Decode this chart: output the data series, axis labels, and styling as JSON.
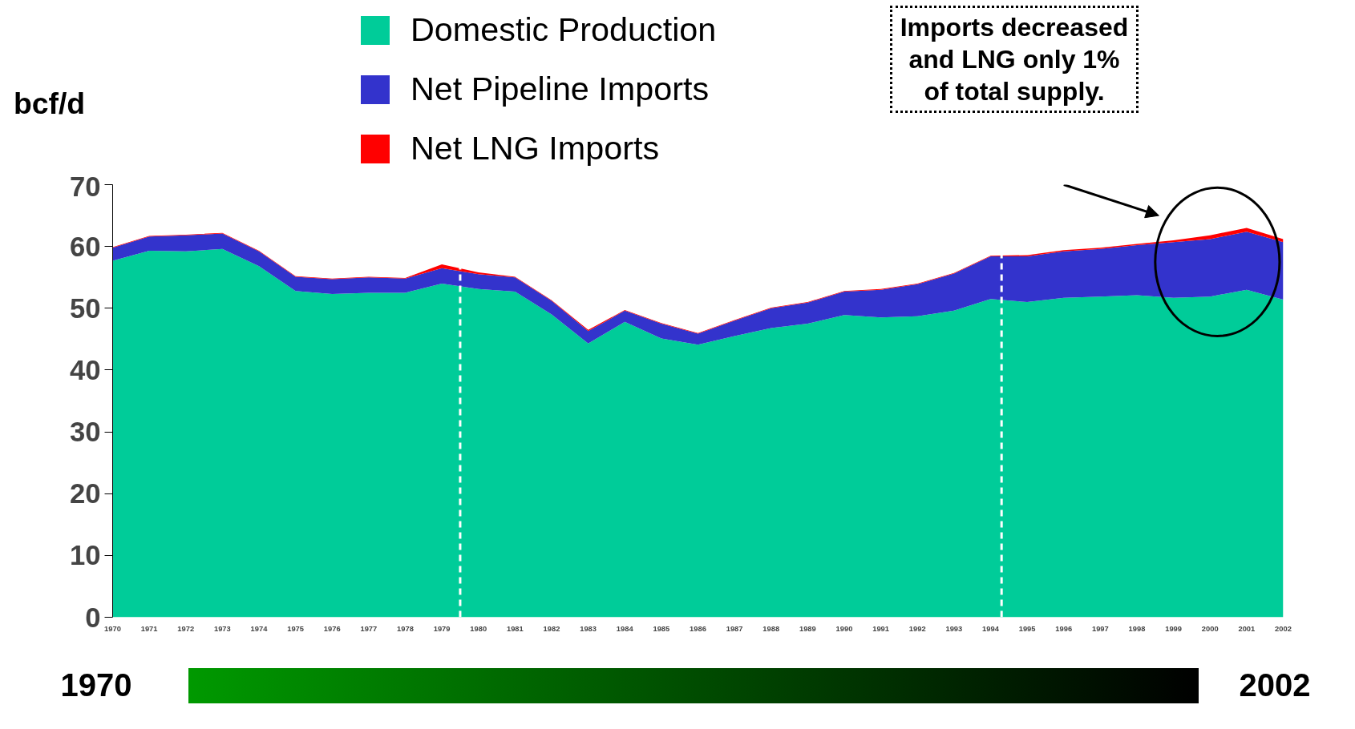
{
  "chart_data": {
    "type": "area",
    "stacked": true,
    "x": [
      1970,
      1971,
      1972,
      1973,
      1974,
      1975,
      1976,
      1977,
      1978,
      1979,
      1980,
      1981,
      1982,
      1983,
      1984,
      1985,
      1986,
      1987,
      1988,
      1989,
      1990,
      1991,
      1992,
      1993,
      1994,
      1995,
      1996,
      1997,
      1998,
      1999,
      2000,
      2001,
      2002
    ],
    "series": [
      {
        "name": "Domestic Production",
        "color": "#00cc99",
        "values": [
          57.7,
          59.3,
          59.2,
          59.6,
          56.8,
          52.8,
          52.3,
          52.5,
          52.5,
          54.0,
          53.1,
          52.7,
          49.0,
          44.3,
          47.8,
          45.1,
          44.1,
          45.5,
          46.8,
          47.5,
          48.9,
          48.5,
          48.7,
          49.6,
          51.5,
          51.0,
          51.7,
          51.9,
          52.1,
          51.7,
          51.9,
          53.0,
          51.4
        ]
      },
      {
        "name": "Net Pipeline Imports",
        "color": "#3333cc",
        "values": [
          2.1,
          2.3,
          2.6,
          2.5,
          2.4,
          2.3,
          2.4,
          2.5,
          2.3,
          2.5,
          2.4,
          2.3,
          2.2,
          2.0,
          1.8,
          2.4,
          1.8,
          2.5,
          3.2,
          3.4,
          3.8,
          4.5,
          5.2,
          6.0,
          6.9,
          7.4,
          7.5,
          7.7,
          8.1,
          9.0,
          9.3,
          9.4,
          9.3
        ]
      },
      {
        "name": "Net LNG Imports",
        "color": "#ff0000",
        "values": [
          0.1,
          0.1,
          0.1,
          0.1,
          0.1,
          0.1,
          0.1,
          0.1,
          0.1,
          0.6,
          0.3,
          0.1,
          0.1,
          0.2,
          0.1,
          0.1,
          0.1,
          0.1,
          0.1,
          0.1,
          0.1,
          0.1,
          0.1,
          0.1,
          0.1,
          0.2,
          0.2,
          0.2,
          0.2,
          0.3,
          0.6,
          0.6,
          0.5
        ]
      }
    ],
    "ylabel": "bcf/d",
    "xlim": [
      1970,
      2002
    ],
    "xticks": [
      1970,
      1971,
      1972,
      1973,
      1974,
      1975,
      1976,
      1977,
      1978,
      1979,
      1980,
      1981,
      1982,
      1983,
      1984,
      1985,
      1986,
      1987,
      1988,
      1989,
      1990,
      1991,
      1992,
      1993,
      1994,
      1995,
      1996,
      1997,
      1998,
      1999,
      2000,
      2001,
      2002
    ],
    "ylim": [
      0,
      70
    ],
    "yticks": [
      0,
      10,
      20,
      30,
      40,
      50,
      60,
      70
    ],
    "grid": false,
    "legend": "top",
    "ref_lines": [
      {
        "axis": "x",
        "value": 1979.5,
        "color": "#ffffff",
        "line_style": "dashed"
      },
      {
        "axis": "x",
        "value": 1994.3,
        "color": "#ffffff",
        "line_style": "dashed"
      }
    ],
    "annotations": [
      "Imports decreased and LNG only 1% of total supply.",
      "1970",
      "2002"
    ]
  }
}
